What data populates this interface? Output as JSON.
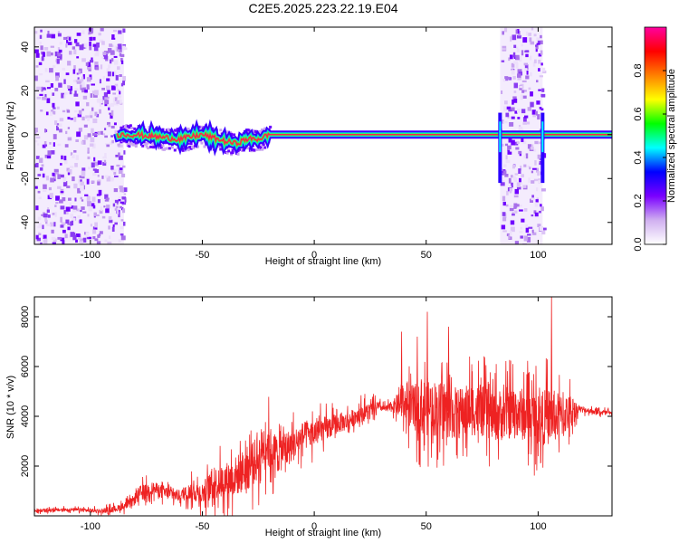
{
  "chart_data": [
    {
      "type": "heatmap",
      "title": "C2E5.2025.223.22.19.E04",
      "xlabel": "Height of straight line (km)",
      "ylabel": "Frequency (Hz)",
      "xlim": [
        -125,
        133
      ],
      "ylim": [
        -50,
        49
      ],
      "xticks": [
        -100,
        -50,
        0,
        50,
        100
      ],
      "yticks": [
        -40,
        -20,
        0,
        20,
        40
      ],
      "xtick_labels": [
        "-100",
        "-50",
        "0",
        "50",
        "100"
      ],
      "ytick_labels": [
        "-40",
        "-20",
        "0",
        "20",
        "40"
      ],
      "colorbar": {
        "label": "Normalized spectral amplitude",
        "range": [
          0,
          1
        ],
        "ticks": [
          0.0,
          0.2,
          0.4,
          0.6,
          0.8
        ],
        "tick_labels": [
          "0.0",
          "0.2",
          "0.4",
          "0.6",
          "0.8"
        ],
        "colormap": [
          "#ffffff",
          "#d0b0f0",
          "#7a00ff",
          "#0000ff",
          "#00ffff",
          "#00ff00",
          "#ffff00",
          "#ff8000",
          "#ff0000",
          "#ff00a0"
        ]
      },
      "signal_track": {
        "x": [
          -88,
          -80,
          -70,
          -60,
          -50,
          -40,
          -35,
          -30,
          -25,
          -20,
          -10,
          0,
          25,
          50,
          80,
          83,
          100,
          103,
          133
        ],
        "frequency": [
          0,
          0,
          -1,
          -2,
          0,
          -3,
          -4,
          -2,
          -2,
          0,
          0,
          0,
          0,
          0,
          0,
          0,
          0,
          0,
          0
        ]
      },
      "noise_regions": [
        {
          "x": [
            -125,
            -85
          ]
        },
        {
          "x": [
            83,
            102
          ]
        }
      ],
      "grid": false
    },
    {
      "type": "line",
      "xlabel": "Height of straight line (km)",
      "ylabel": "SNR (10 * v/v)",
      "xlim": [
        -125,
        133
      ],
      "ylim": [
        0,
        8800
      ],
      "xticks": [
        -100,
        -50,
        0,
        50,
        100
      ],
      "yticks": [
        2000,
        4000,
        6000,
        8000
      ],
      "xtick_labels": [
        "-100",
        "-50",
        "0",
        "50",
        "100"
      ],
      "ytick_labels": [
        "2000",
        "4000",
        "6000",
        "8000"
      ],
      "color": "#ee2222",
      "series": [
        {
          "x": [
            -125,
            -110,
            -95,
            -88,
            -82,
            -78,
            -72,
            -65,
            -60,
            -55,
            -50,
            -45,
            -40,
            -35,
            -30,
            -25,
            -22,
            -18,
            -15,
            -10,
            -5,
            0,
            5,
            10,
            15,
            20,
            25,
            28,
            32,
            35,
            40,
            45,
            50,
            55,
            60,
            65,
            70,
            75,
            80,
            85,
            90,
            95,
            100,
            105,
            110,
            115,
            118,
            125,
            133
          ],
          "y": [
            200,
            250,
            200,
            300,
            500,
            900,
            1100,
            900,
            800,
            1000,
            900,
            1300,
            1400,
            1600,
            1900,
            2300,
            3000,
            2500,
            2600,
            2800,
            3200,
            3300,
            3500,
            3700,
            3800,
            4100,
            4200,
            4400,
            4300,
            4400,
            4500,
            4300,
            4400,
            4300,
            4200,
            4100,
            4300,
            4200,
            4000,
            4100,
            4200,
            4000,
            3900,
            4000,
            4000,
            4200,
            4300,
            4200,
            4100
          ],
          "spread": [
            150,
            150,
            200,
            300,
            400,
            700,
            600,
            600,
            500,
            800,
            1000,
            1400,
            1600,
            1800,
            2000,
            2000,
            2200,
            1900,
            1800,
            1500,
            1300,
            1200,
            1100,
            900,
            800,
            800,
            800,
            400,
            300,
            500,
            1500,
            2200,
            2600,
            2500,
            2400,
            2300,
            2400,
            2300,
            2200,
            2400,
            2300,
            2400,
            2300,
            2600,
            2000,
            1500,
            300,
            250,
            250
          ]
        }
      ],
      "peaks": [
        {
          "x": 50.5,
          "y": 8200
        },
        {
          "x": 106,
          "y": 8800
        },
        {
          "x": 46,
          "y": 7200
        },
        {
          "x": 39,
          "y": 7400
        },
        {
          "x": 60,
          "y": 7600
        }
      ],
      "grid": false
    }
  ]
}
